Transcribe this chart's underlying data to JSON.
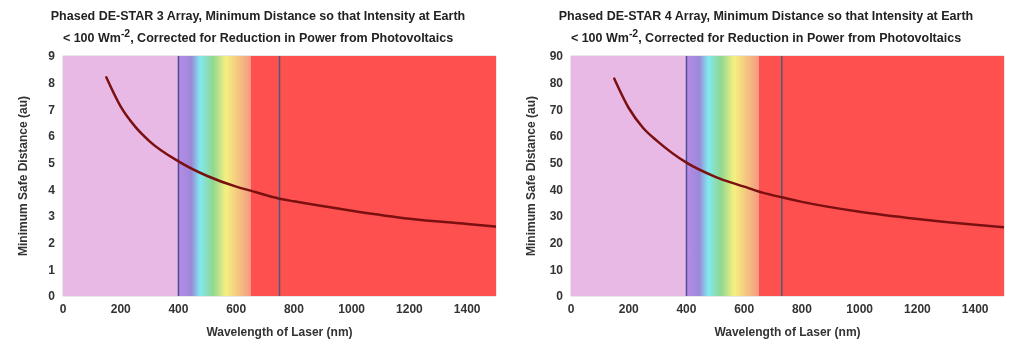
{
  "chart_data": [
    {
      "type": "line",
      "title": "Phased DE-STAR 3 Array, Minimum Distance so that Intensity at Earth < 100 Wm$^{-2}$, Corrected for Reduction in Power from Photovoltaics",
      "xlabel": "Wavelength of Laser (nm)",
      "ylabel": "Minimum Safe Distance (au)",
      "x": [
        150,
        200,
        250,
        300,
        400,
        500,
        600,
        650,
        750,
        800,
        1000,
        1200,
        1400,
        1500
      ],
      "series": [
        {
          "color": "#7a1010",
          "values": [
            8.2,
            7.1,
            6.35,
            5.8,
            5.05,
            4.5,
            4.1,
            3.95,
            3.65,
            3.55,
            3.2,
            2.9,
            2.7,
            2.6
          ]
        }
      ],
      "xlim": [
        0,
        1500
      ],
      "xticks": [
        0,
        200,
        400,
        600,
        800,
        1000,
        1200,
        1400
      ],
      "ylim": [
        0,
        9
      ],
      "yticks": [
        0,
        1,
        2,
        3,
        4,
        5,
        6,
        7,
        8,
        9
      ],
      "grid": true,
      "legend": false,
      "marker": "none",
      "line_style": "solid",
      "bands": [
        {
          "axis": "x",
          "from": 0,
          "to": 400,
          "color": "#e9b9e6"
        },
        {
          "axis": "x",
          "from": 400,
          "to": 650
        },
        {
          "axis": "x",
          "from": 650,
          "to": 1500,
          "color": "#ff5050"
        }
      ],
      "ref_lines": [
        {
          "axis": "x",
          "value": 400,
          "color": "#4a4f90"
        },
        {
          "axis": "x",
          "value": 750,
          "color": "#4a5a78"
        }
      ]
    },
    {
      "type": "line",
      "title": "Phased DE-STAR 4 Array, Minimum Distance so that Intensity at Earth < 100 Wm$^{-2}$, Corrected for Reduction in Power from Photovoltaics",
      "xlabel": "Wavelength of Laser (nm)",
      "ylabel": "Minimum Safe Distance (au)",
      "x": [
        150,
        200,
        250,
        300,
        400,
        500,
        600,
        650,
        730,
        800,
        1000,
        1200,
        1400,
        1500
      ],
      "series": [
        {
          "color": "#7a1010",
          "values": [
            81.5,
            70.5,
            63,
            58,
            50,
            44.7,
            41,
            39.2,
            37,
            35.3,
            31.6,
            28.9,
            26.7,
            25.8
          ]
        }
      ],
      "xlim": [
        0,
        1500
      ],
      "xticks": [
        0,
        200,
        400,
        600,
        800,
        1000,
        1200,
        1400
      ],
      "ylim": [
        0,
        90
      ],
      "yticks": [
        0,
        10,
        20,
        30,
        40,
        50,
        60,
        70,
        80,
        90
      ],
      "grid": true,
      "legend": false,
      "marker": "none",
      "line_style": "solid",
      "bands": [
        {
          "axis": "x",
          "from": 0,
          "to": 400,
          "color": "#e9b9e6"
        },
        {
          "axis": "x",
          "from": 400,
          "to": 650
        },
        {
          "axis": "x",
          "from": 650,
          "to": 1500,
          "color": "#ff5050"
        }
      ],
      "ref_lines": [
        {
          "axis": "x",
          "value": 400,
          "color": "#4a4f90"
        },
        {
          "axis": "x",
          "value": 730,
          "color": "#4a5a78"
        }
      ]
    }
  ]
}
